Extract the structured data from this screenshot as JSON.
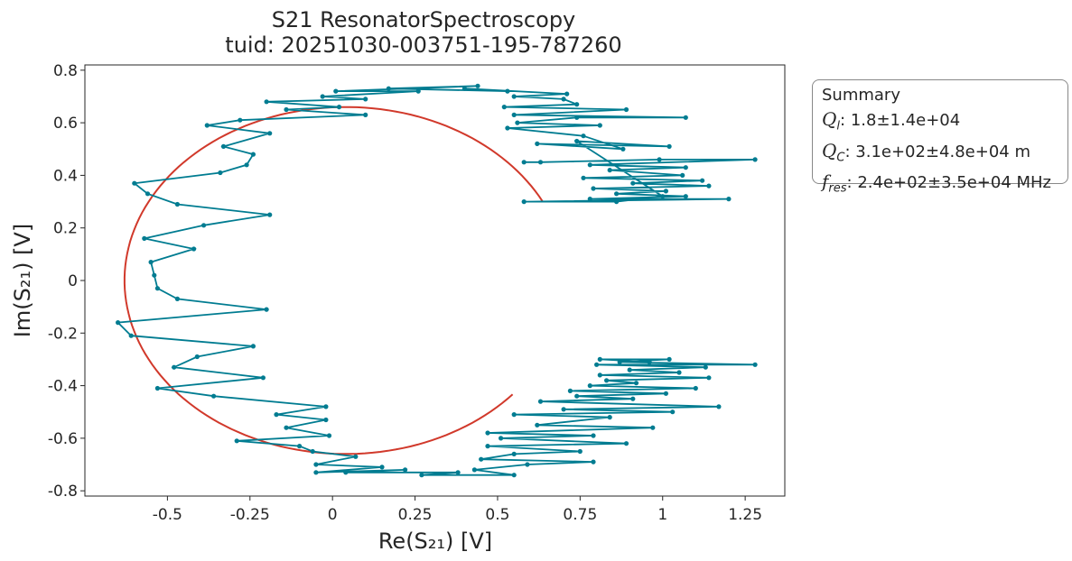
{
  "chart_data": {
    "type": "scatter",
    "title_line1": "S21 ResonatorSpectroscopy",
    "title_line2": "tuid: 20251030-003751-195-787260",
    "xlabel": "Re(S₂₁) [V]",
    "ylabel": "Im(S₂₁) [V]",
    "xlim": [
      -0.75,
      1.37
    ],
    "ylim": [
      -0.82,
      0.82
    ],
    "xticks": [
      -0.5,
      -0.25,
      0,
      0.25,
      0.5,
      0.75,
      1,
      1.25
    ],
    "xtick_labels": [
      "-0.5",
      "-0.25",
      "0",
      "0.25",
      "0.5",
      "0.75",
      "1",
      "1.25"
    ],
    "yticks": [
      0.8,
      0.6,
      0.4,
      0.2,
      0,
      -0.2,
      -0.4,
      -0.6,
      -0.8
    ],
    "ytick_labels": [
      "0.8",
      "0.6",
      "0.4",
      "0.2",
      "0",
      "-0.2",
      "-0.4",
      "-0.6",
      "-0.8"
    ],
    "grid": false,
    "colors": {
      "data": "#007c91",
      "fit": "#d1392b"
    },
    "series": [
      {
        "kind": "data",
        "points": [
          [
            0.58,
            0.45
          ],
          [
            0.63,
            0.45
          ],
          [
            0.99,
            0.46
          ],
          [
            1.28,
            0.46
          ],
          [
            0.78,
            0.44
          ],
          [
            1.07,
            0.43
          ],
          [
            0.84,
            0.42
          ],
          [
            1.06,
            0.4
          ],
          [
            0.76,
            0.39
          ],
          [
            1.12,
            0.38
          ],
          [
            0.91,
            0.37
          ],
          [
            1.14,
            0.36
          ],
          [
            0.79,
            0.35
          ],
          [
            1.01,
            0.34
          ],
          [
            0.86,
            0.33
          ],
          [
            1.07,
            0.32
          ],
          [
            0.78,
            0.31
          ],
          [
            1.2,
            0.31
          ],
          [
            0.58,
            0.3
          ],
          [
            0.86,
            0.3
          ],
          [
            1.0,
            0.32
          ],
          [
            0.74,
            0.53
          ],
          [
            1.02,
            0.51
          ],
          [
            0.62,
            0.52
          ],
          [
            0.88,
            0.5
          ],
          [
            0.76,
            0.55
          ],
          [
            0.53,
            0.58
          ],
          [
            0.81,
            0.59
          ],
          [
            0.56,
            0.6
          ],
          [
            0.74,
            0.62
          ],
          [
            1.07,
            0.62
          ],
          [
            0.55,
            0.63
          ],
          [
            0.89,
            0.65
          ],
          [
            0.52,
            0.66
          ],
          [
            0.74,
            0.67
          ],
          [
            0.7,
            0.69
          ],
          [
            0.55,
            0.7
          ],
          [
            0.71,
            0.71
          ],
          [
            0.4,
            0.73
          ],
          [
            0.53,
            0.72
          ],
          [
            0.17,
            0.73
          ],
          [
            0.44,
            0.74
          ],
          [
            0.01,
            0.72
          ],
          [
            0.26,
            0.72
          ],
          [
            -0.03,
            0.7
          ],
          [
            0.1,
            0.69
          ],
          [
            -0.2,
            0.68
          ],
          [
            0.02,
            0.66
          ],
          [
            -0.14,
            0.65
          ],
          [
            0.1,
            0.63
          ],
          [
            -0.28,
            0.61
          ],
          [
            -0.38,
            0.59
          ],
          [
            -0.19,
            0.56
          ],
          [
            -0.33,
            0.51
          ],
          [
            -0.24,
            0.48
          ],
          [
            -0.26,
            0.44
          ],
          [
            -0.34,
            0.41
          ],
          [
            -0.6,
            0.37
          ],
          [
            -0.56,
            0.33
          ],
          [
            -0.47,
            0.29
          ],
          [
            -0.19,
            0.25
          ],
          [
            -0.39,
            0.21
          ],
          [
            -0.57,
            0.16
          ],
          [
            -0.42,
            0.12
          ],
          [
            -0.55,
            0.07
          ],
          [
            -0.54,
            0.02
          ],
          [
            -0.53,
            -0.03
          ],
          [
            -0.47,
            -0.07
          ],
          [
            -0.2,
            -0.11
          ],
          [
            -0.65,
            -0.16
          ],
          [
            -0.61,
            -0.21
          ],
          [
            -0.24,
            -0.25
          ],
          [
            -0.41,
            -0.29
          ],
          [
            -0.48,
            -0.33
          ],
          [
            -0.21,
            -0.37
          ],
          [
            -0.53,
            -0.41
          ],
          [
            -0.36,
            -0.44
          ],
          [
            -0.02,
            -0.48
          ],
          [
            -0.17,
            -0.51
          ],
          [
            -0.02,
            -0.53
          ],
          [
            -0.14,
            -0.56
          ],
          [
            -0.01,
            -0.59
          ],
          [
            -0.29,
            -0.61
          ],
          [
            -0.1,
            -0.63
          ],
          [
            -0.06,
            -0.65
          ],
          [
            0.07,
            -0.67
          ],
          [
            -0.05,
            -0.7
          ],
          [
            0.15,
            -0.71
          ],
          [
            -0.05,
            -0.73
          ],
          [
            0.22,
            -0.72
          ],
          [
            0.04,
            -0.73
          ],
          [
            0.38,
            -0.73
          ],
          [
            0.27,
            -0.74
          ],
          [
            0.55,
            -0.74
          ],
          [
            0.43,
            -0.72
          ],
          [
            0.59,
            -0.7
          ],
          [
            0.79,
            -0.69
          ],
          [
            0.45,
            -0.68
          ],
          [
            0.55,
            -0.66
          ],
          [
            0.75,
            -0.65
          ],
          [
            0.47,
            -0.63
          ],
          [
            0.89,
            -0.62
          ],
          [
            0.51,
            -0.6
          ],
          [
            0.79,
            -0.59
          ],
          [
            0.47,
            -0.58
          ],
          [
            0.97,
            -0.56
          ],
          [
            0.62,
            -0.55
          ],
          [
            0.84,
            -0.52
          ],
          [
            0.55,
            -0.51
          ],
          [
            1.03,
            -0.5
          ],
          [
            0.7,
            -0.49
          ],
          [
            1.17,
            -0.48
          ],
          [
            0.63,
            -0.46
          ],
          [
            0.91,
            -0.45
          ],
          [
            0.74,
            -0.44
          ],
          [
            1.01,
            -0.43
          ],
          [
            0.72,
            -0.42
          ],
          [
            1.1,
            -0.41
          ],
          [
            0.78,
            -0.4
          ],
          [
            0.92,
            -0.39
          ],
          [
            0.83,
            -0.38
          ],
          [
            1.14,
            -0.37
          ],
          [
            0.81,
            -0.36
          ],
          [
            1.05,
            -0.35
          ],
          [
            0.9,
            -0.34
          ],
          [
            1.13,
            -0.33
          ],
          [
            0.8,
            -0.32
          ],
          [
            1.28,
            -0.32
          ],
          [
            0.87,
            -0.31
          ],
          [
            1.02,
            -0.3
          ],
          [
            0.81,
            -0.3
          ],
          [
            0.96,
            -0.31
          ]
        ]
      },
      {
        "kind": "fit",
        "center": [
          0.04,
          0.0
        ],
        "radii": [
          0.67,
          0.66
        ],
        "gap_start_deg": 27,
        "gap_end_deg": -41
      }
    ]
  },
  "summary": {
    "title": "Summary",
    "rows": [
      {
        "symbol": "Q",
        "sub": "l",
        "text": ": 1.8±1.4e+04"
      },
      {
        "symbol": "Q",
        "sub": "C",
        "text": ": 3.1e+02±4.8e+04 m"
      },
      {
        "symbol": "f",
        "sub": "res",
        "text": ": 2.4e+02±3.5e+04 MHz"
      }
    ]
  }
}
